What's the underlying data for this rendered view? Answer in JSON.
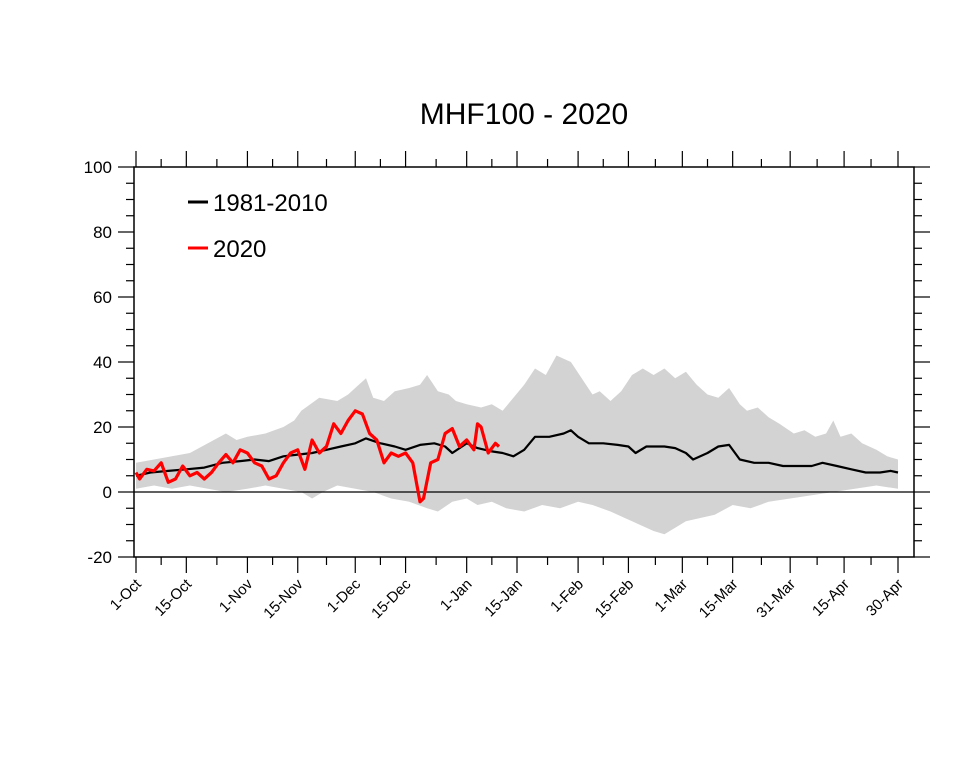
{
  "chart_data": {
    "type": "line",
    "title": "MHF100 - 2020",
    "xlabel": "",
    "ylabel": "",
    "ylim": [
      -20,
      100
    ],
    "yticks": [
      -20,
      0,
      20,
      40,
      60,
      80,
      100
    ],
    "xlim": [
      "2019-10-01",
      "2020-04-30"
    ],
    "xticks": [
      {
        "date": "2019-10-01",
        "label": "1-Oct"
      },
      {
        "date": "2019-10-15",
        "label": "15-Oct"
      },
      {
        "date": "2019-11-01",
        "label": "1-Nov"
      },
      {
        "date": "2019-11-15",
        "label": "15-Nov"
      },
      {
        "date": "2019-12-01",
        "label": "1-Dec"
      },
      {
        "date": "2019-12-15",
        "label": "15-Dec"
      },
      {
        "date": "2020-01-01",
        "label": "1-Jan"
      },
      {
        "date": "2020-01-15",
        "label": "15-Jan"
      },
      {
        "date": "2020-02-01",
        "label": "1-Feb"
      },
      {
        "date": "2020-02-15",
        "label": "15-Feb"
      },
      {
        "date": "2020-03-01",
        "label": "1-Mar"
      },
      {
        "date": "2020-03-15",
        "label": "15-Mar"
      },
      {
        "date": "2020-03-31",
        "label": "31-Mar"
      },
      {
        "date": "2020-04-15",
        "label": "15-Apr"
      },
      {
        "date": "2020-04-30",
        "label": "30-Apr"
      }
    ],
    "legend": {
      "position": "top-left",
      "entries": [
        "1981-2010",
        "2020"
      ]
    },
    "colors": {
      "climatology": "#000000",
      "year2020": "#ff0000",
      "band": "#d3d3d3"
    },
    "band": {
      "name": "1981-2010 range",
      "upper": [
        [
          "2019-10-01",
          9
        ],
        [
          "2019-10-06",
          10
        ],
        [
          "2019-10-11",
          11
        ],
        [
          "2019-10-16",
          12
        ],
        [
          "2019-10-21",
          15
        ],
        [
          "2019-10-26",
          18
        ],
        [
          "2019-10-29",
          16
        ],
        [
          "2019-11-01",
          17
        ],
        [
          "2019-11-06",
          18
        ],
        [
          "2019-11-11",
          20
        ],
        [
          "2019-11-14",
          22
        ],
        [
          "2019-11-16",
          25
        ],
        [
          "2019-11-21",
          29
        ],
        [
          "2019-11-26",
          28
        ],
        [
          "2019-11-29",
          30
        ],
        [
          "2019-12-02",
          33
        ],
        [
          "2019-12-04",
          35
        ],
        [
          "2019-12-06",
          29
        ],
        [
          "2019-12-09",
          28
        ],
        [
          "2019-12-12",
          31
        ],
        [
          "2019-12-16",
          32
        ],
        [
          "2019-12-19",
          33
        ],
        [
          "2019-12-21",
          36
        ],
        [
          "2019-12-24",
          31
        ],
        [
          "2019-12-27",
          30
        ],
        [
          "2019-12-29",
          28
        ],
        [
          "2020-01-01",
          27
        ],
        [
          "2020-01-05",
          26
        ],
        [
          "2020-01-08",
          27
        ],
        [
          "2020-01-11",
          25
        ],
        [
          "2020-01-14",
          29
        ],
        [
          "2020-01-17",
          33
        ],
        [
          "2020-01-20",
          38
        ],
        [
          "2020-01-23",
          36
        ],
        [
          "2020-01-26",
          42
        ],
        [
          "2020-01-30",
          40
        ],
        [
          "2020-02-02",
          35
        ],
        [
          "2020-02-05",
          30
        ],
        [
          "2020-02-07",
          31
        ],
        [
          "2020-02-10",
          28
        ],
        [
          "2020-02-13",
          31
        ],
        [
          "2020-02-16",
          36
        ],
        [
          "2020-02-19",
          38
        ],
        [
          "2020-02-22",
          36
        ],
        [
          "2020-02-25",
          38
        ],
        [
          "2020-02-28",
          35
        ],
        [
          "2020-03-02",
          37
        ],
        [
          "2020-03-05",
          33
        ],
        [
          "2020-03-08",
          30
        ],
        [
          "2020-03-11",
          29
        ],
        [
          "2020-03-14",
          32
        ],
        [
          "2020-03-17",
          27
        ],
        [
          "2020-03-19",
          25
        ],
        [
          "2020-03-22",
          26
        ],
        [
          "2020-03-25",
          23
        ],
        [
          "2020-03-28",
          21
        ],
        [
          "2020-04-01",
          18
        ],
        [
          "2020-04-04",
          19
        ],
        [
          "2020-04-07",
          17
        ],
        [
          "2020-04-10",
          18
        ],
        [
          "2020-04-12",
          22
        ],
        [
          "2020-04-14",
          17
        ],
        [
          "2020-04-17",
          18
        ],
        [
          "2020-04-20",
          15
        ],
        [
          "2020-04-24",
          13
        ],
        [
          "2020-04-27",
          11
        ],
        [
          "2020-04-30",
          10
        ]
      ],
      "lower": [
        [
          "2019-10-01",
          1
        ],
        [
          "2019-10-06",
          2
        ],
        [
          "2019-10-11",
          1
        ],
        [
          "2019-10-16",
          2
        ],
        [
          "2019-10-21",
          1
        ],
        [
          "2019-10-26",
          0
        ],
        [
          "2019-11-01",
          1
        ],
        [
          "2019-11-06",
          2
        ],
        [
          "2019-11-11",
          1
        ],
        [
          "2019-11-16",
          0
        ],
        [
          "2019-11-19",
          -2
        ],
        [
          "2019-11-22",
          0
        ],
        [
          "2019-11-26",
          2
        ],
        [
          "2019-12-01",
          1
        ],
        [
          "2019-12-06",
          0
        ],
        [
          "2019-12-11",
          -2
        ],
        [
          "2019-12-16",
          -3
        ],
        [
          "2019-12-21",
          -5
        ],
        [
          "2019-12-24",
          -6
        ],
        [
          "2019-12-28",
          -3
        ],
        [
          "2020-01-01",
          -2
        ],
        [
          "2020-01-04",
          -4
        ],
        [
          "2020-01-08",
          -3
        ],
        [
          "2020-01-12",
          -5
        ],
        [
          "2020-01-17",
          -6
        ],
        [
          "2020-01-22",
          -4
        ],
        [
          "2020-01-27",
          -5
        ],
        [
          "2020-02-01",
          -3
        ],
        [
          "2020-02-05",
          -4
        ],
        [
          "2020-02-10",
          -6
        ],
        [
          "2020-02-14",
          -8
        ],
        [
          "2020-02-18",
          -10
        ],
        [
          "2020-02-22",
          -12
        ],
        [
          "2020-02-25",
          -13
        ],
        [
          "2020-02-28",
          -11
        ],
        [
          "2020-03-02",
          -9
        ],
        [
          "2020-03-06",
          -8
        ],
        [
          "2020-03-10",
          -7
        ],
        [
          "2020-03-15",
          -4
        ],
        [
          "2020-03-20",
          -5
        ],
        [
          "2020-03-25",
          -3
        ],
        [
          "2020-03-31",
          -2
        ],
        [
          "2020-04-06",
          -1
        ],
        [
          "2020-04-12",
          0
        ],
        [
          "2020-04-18",
          1
        ],
        [
          "2020-04-24",
          2
        ],
        [
          "2020-04-30",
          1
        ]
      ]
    },
    "series": [
      {
        "name": "1981-2010",
        "color": "#000000",
        "points": [
          [
            "2019-10-01",
            5
          ],
          [
            "2019-10-05",
            6
          ],
          [
            "2019-10-10",
            6.5
          ],
          [
            "2019-10-15",
            7
          ],
          [
            "2019-10-20",
            7.5
          ],
          [
            "2019-10-25",
            9
          ],
          [
            "2019-10-30",
            9.5
          ],
          [
            "2019-11-03",
            10
          ],
          [
            "2019-11-07",
            9.5
          ],
          [
            "2019-11-11",
            11
          ],
          [
            "2019-11-15",
            11.5
          ],
          [
            "2019-11-19",
            12
          ],
          [
            "2019-11-23",
            13
          ],
          [
            "2019-11-27",
            14
          ],
          [
            "2019-12-01",
            15
          ],
          [
            "2019-12-04",
            16.5
          ],
          [
            "2019-12-08",
            15
          ],
          [
            "2019-12-12",
            14
          ],
          [
            "2019-12-15",
            13
          ],
          [
            "2019-12-19",
            14.5
          ],
          [
            "2019-12-23",
            15
          ],
          [
            "2019-12-26",
            14
          ],
          [
            "2019-12-28",
            12
          ],
          [
            "2020-01-01",
            15
          ],
          [
            "2020-01-04",
            13.5
          ],
          [
            "2020-01-08",
            12.5
          ],
          [
            "2020-01-11",
            12
          ],
          [
            "2020-01-14",
            11
          ],
          [
            "2020-01-17",
            13
          ],
          [
            "2020-01-20",
            17
          ],
          [
            "2020-01-24",
            17
          ],
          [
            "2020-01-28",
            18
          ],
          [
            "2020-01-30",
            19
          ],
          [
            "2020-02-01",
            17
          ],
          [
            "2020-02-04",
            15
          ],
          [
            "2020-02-08",
            15
          ],
          [
            "2020-02-12",
            14.5
          ],
          [
            "2020-02-15",
            14
          ],
          [
            "2020-02-17",
            12
          ],
          [
            "2020-02-20",
            14
          ],
          [
            "2020-02-25",
            14
          ],
          [
            "2020-02-28",
            13.5
          ],
          [
            "2020-03-02",
            12
          ],
          [
            "2020-03-04",
            10
          ],
          [
            "2020-03-08",
            12
          ],
          [
            "2020-03-11",
            14
          ],
          [
            "2020-03-14",
            14.5
          ],
          [
            "2020-03-17",
            10
          ],
          [
            "2020-03-21",
            9
          ],
          [
            "2020-03-25",
            9
          ],
          [
            "2020-03-29",
            8
          ],
          [
            "2020-04-02",
            8
          ],
          [
            "2020-04-06",
            8
          ],
          [
            "2020-04-09",
            9
          ],
          [
            "2020-04-13",
            8
          ],
          [
            "2020-04-17",
            7
          ],
          [
            "2020-04-21",
            6
          ],
          [
            "2020-04-25",
            6
          ],
          [
            "2020-04-28",
            6.5
          ],
          [
            "2020-04-30",
            6
          ]
        ]
      },
      {
        "name": "2020",
        "color": "#ff0000",
        "points": [
          [
            "2019-10-01",
            6
          ],
          [
            "2019-10-02",
            4
          ],
          [
            "2019-10-04",
            7
          ],
          [
            "2019-10-06",
            6.5
          ],
          [
            "2019-10-08",
            9
          ],
          [
            "2019-10-10",
            3
          ],
          [
            "2019-10-12",
            4
          ],
          [
            "2019-10-14",
            8
          ],
          [
            "2019-10-16",
            5
          ],
          [
            "2019-10-18",
            6
          ],
          [
            "2019-10-20",
            4
          ],
          [
            "2019-10-22",
            6
          ],
          [
            "2019-10-24",
            9
          ],
          [
            "2019-10-26",
            11.5
          ],
          [
            "2019-10-28",
            9
          ],
          [
            "2019-10-30",
            13
          ],
          [
            "2019-11-01",
            12
          ],
          [
            "2019-11-03",
            9
          ],
          [
            "2019-11-05",
            8
          ],
          [
            "2019-11-07",
            4
          ],
          [
            "2019-11-09",
            5
          ],
          [
            "2019-11-11",
            9
          ],
          [
            "2019-11-13",
            12
          ],
          [
            "2019-11-15",
            13
          ],
          [
            "2019-11-17",
            7
          ],
          [
            "2019-11-19",
            16
          ],
          [
            "2019-11-21",
            12
          ],
          [
            "2019-11-23",
            14
          ],
          [
            "2019-11-25",
            21
          ],
          [
            "2019-11-27",
            18
          ],
          [
            "2019-11-29",
            22
          ],
          [
            "2019-12-01",
            25
          ],
          [
            "2019-12-03",
            24
          ],
          [
            "2019-12-05",
            18
          ],
          [
            "2019-12-07",
            16
          ],
          [
            "2019-12-09",
            9
          ],
          [
            "2019-12-11",
            12
          ],
          [
            "2019-12-13",
            11
          ],
          [
            "2019-12-15",
            12
          ],
          [
            "2019-12-17",
            9
          ],
          [
            "2019-12-19",
            -3
          ],
          [
            "2019-12-20",
            -2
          ],
          [
            "2019-12-22",
            9
          ],
          [
            "2019-12-24",
            10
          ],
          [
            "2019-12-26",
            18
          ],
          [
            "2019-12-28",
            19.5
          ],
          [
            "2019-12-30",
            14
          ],
          [
            "2020-01-01",
            16
          ],
          [
            "2020-01-03",
            13
          ],
          [
            "2020-01-04",
            21
          ],
          [
            "2020-01-05",
            20
          ],
          [
            "2020-01-07",
            12
          ],
          [
            "2020-01-09",
            15
          ],
          [
            "2020-01-10",
            14
          ]
        ]
      }
    ]
  }
}
